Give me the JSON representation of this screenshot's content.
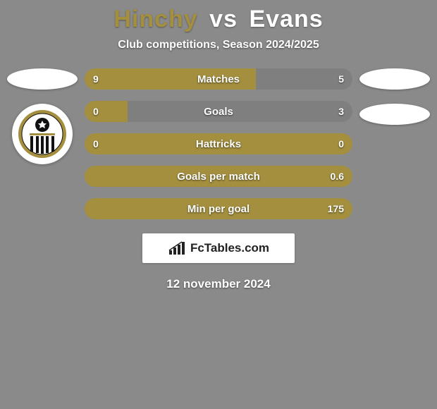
{
  "colors": {
    "background": "#8a8a8a",
    "player1_accent": "#a38f3e",
    "player2_accent": "#8a8a8a",
    "bar_left": "#a38f3e",
    "bar_right": "#8a8a8a",
    "bar_neutral": "#8a8a8a",
    "text_white": "#ffffff"
  },
  "title": {
    "player1": "Hinchy",
    "vs": "vs",
    "player2": "Evans"
  },
  "subtitle": "Club competitions, Season 2024/2025",
  "stats": [
    {
      "label": "Matches",
      "left_val": "9",
      "right_val": "5",
      "left_pct": 64,
      "right_pct": 36,
      "split": true
    },
    {
      "label": "Goals",
      "left_val": "0",
      "right_val": "3",
      "left_pct": 16,
      "right_pct": 84,
      "split": true
    },
    {
      "label": "Hattricks",
      "left_val": "0",
      "right_val": "0",
      "left_pct": 100,
      "right_pct": 0,
      "split": false
    },
    {
      "label": "Goals per match",
      "left_val": "",
      "right_val": "0.6",
      "left_pct": 100,
      "right_pct": 0,
      "split": false
    },
    {
      "label": "Min per goal",
      "left_val": "",
      "right_val": "175",
      "left_pct": 100,
      "right_pct": 0,
      "split": false
    }
  ],
  "brand": "FcTables.com",
  "date": "12 november 2024",
  "crest": {
    "outer_ring": "#a38f3e",
    "ball": "#111111",
    "stripes": "#111111"
  }
}
